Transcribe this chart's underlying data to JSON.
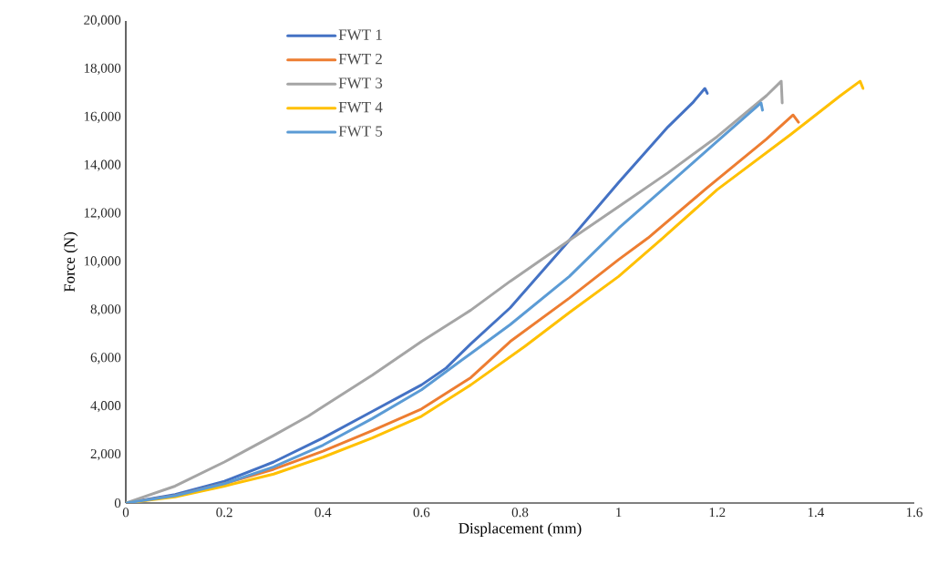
{
  "chart_data": {
    "type": "line",
    "xlabel": "Displacement (mm)",
    "ylabel": "Force (N)",
    "xlim": [
      0,
      1.6
    ],
    "ylim": [
      0,
      20000
    ],
    "xticks": [
      0,
      0.2,
      0.4,
      0.6,
      0.8,
      1,
      1.2,
      1.4,
      1.6
    ],
    "yticks": [
      {
        "value": 0,
        "label": "0"
      },
      {
        "value": 2000,
        "label": "2,000"
      },
      {
        "value": 4000,
        "label": "4,000"
      },
      {
        "value": 6000,
        "label": "6,000"
      },
      {
        "value": 8000,
        "label": "8,000"
      },
      {
        "value": 10000,
        "label": "10,000"
      },
      {
        "value": 12000,
        "label": "12,000"
      },
      {
        "value": 14000,
        "label": "14,000"
      },
      {
        "value": 16000,
        "label": "16,000"
      },
      {
        "value": 18000,
        "label": "18,000"
      },
      {
        "value": 20000,
        "label": "20,000"
      }
    ],
    "legend": "top left",
    "grid": false,
    "marker": "none",
    "line_style": "solid",
    "series": [
      {
        "name": "FWT 1",
        "color": "#4472c4",
        "x": [
          0,
          0.1,
          0.2,
          0.3,
          0.4,
          0.5,
          0.6,
          0.65,
          0.7,
          0.78,
          0.9,
          1.0,
          1.1,
          1.15,
          1.175,
          1.18
        ],
        "values": [
          0,
          350,
          900,
          1700,
          2700,
          3800,
          4900,
          5600,
          6600,
          8100,
          10900,
          13300,
          15600,
          16600,
          17200,
          17000
        ]
      },
      {
        "name": "FWT 2",
        "color": "#ed7d31",
        "x": [
          0,
          0.1,
          0.2,
          0.3,
          0.4,
          0.5,
          0.6,
          0.7,
          0.78,
          0.9,
          1.0,
          1.06,
          1.175,
          1.3,
          1.354,
          1.365
        ],
        "values": [
          0,
          300,
          800,
          1400,
          2150,
          3000,
          3900,
          5200,
          6700,
          8500,
          10100,
          11000,
          13000,
          15100,
          16100,
          15800
        ]
      },
      {
        "name": "FWT 3",
        "color": "#a5a5a5",
        "x": [
          0,
          0.1,
          0.2,
          0.3,
          0.37,
          0.4,
          0.5,
          0.6,
          0.7,
          0.78,
          0.9,
          1.0,
          1.1,
          1.2,
          1.3,
          1.33,
          1.332
        ],
        "values": [
          0,
          700,
          1700,
          2800,
          3600,
          4000,
          5300,
          6700,
          8000,
          9200,
          10900,
          12300,
          13700,
          15200,
          16900,
          17500,
          16600
        ]
      },
      {
        "name": "FWT 4",
        "color": "#ffc000",
        "x": [
          0,
          0.1,
          0.2,
          0.3,
          0.4,
          0.5,
          0.6,
          0.7,
          0.81,
          0.9,
          1.0,
          1.09,
          1.2,
          1.35,
          1.45,
          1.49,
          1.496
        ],
        "values": [
          0,
          250,
          700,
          1200,
          1900,
          2700,
          3600,
          4900,
          6500,
          7900,
          9400,
          11000,
          13000,
          15300,
          16900,
          17500,
          17200
        ]
      },
      {
        "name": "FWT 5",
        "color": "#5b9bd5",
        "x": [
          0,
          0.1,
          0.2,
          0.3,
          0.4,
          0.5,
          0.6,
          0.7,
          0.78,
          0.9,
          1.0,
          1.1,
          1.2,
          1.289,
          1.292
        ],
        "values": [
          0,
          300,
          800,
          1500,
          2400,
          3500,
          4700,
          6200,
          7400,
          9400,
          11400,
          13200,
          15000,
          16600,
          16300
        ]
      }
    ]
  }
}
